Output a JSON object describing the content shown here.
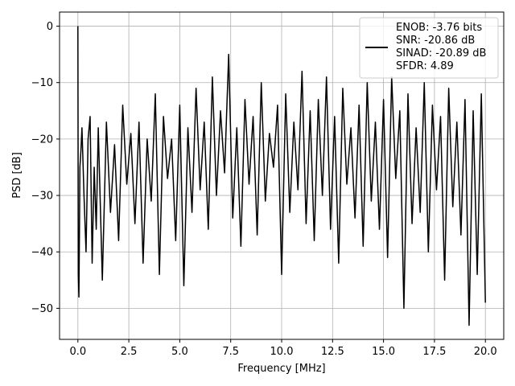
{
  "chart_data": {
    "type": "line",
    "xlabel": "Frequency [MHz]",
    "ylabel": "PSD [dB]",
    "xlim": [
      -0.9,
      20.9
    ],
    "ylim": [
      -55.5,
      2.5
    ],
    "xticks": [
      0.0,
      2.5,
      5.0,
      7.5,
      10.0,
      12.5,
      15.0,
      17.5,
      20.0
    ],
    "xtick_labels": [
      "0.0",
      "2.5",
      "5.0",
      "7.5",
      "10.0",
      "12.5",
      "15.0",
      "17.5",
      "20.0"
    ],
    "yticks": [
      0,
      -10,
      -20,
      -30,
      -40,
      -50
    ],
    "ytick_labels": [
      "0",
      "−10",
      "−20",
      "−30",
      "−40",
      "−50"
    ],
    "grid": true,
    "legend_position": "top-right",
    "series": [
      {
        "name": "ENOB: -3.76 bits\nSNR: -20.86 dB\nSINAD: -20.89 dB\nSFDR: 4.89",
        "legend_lines": [
          "ENOB: -3.76 bits",
          "SNR: -20.86 dB",
          "SINAD: -20.89 dB",
          "SFDR: 4.89"
        ],
        "color": "#000000",
        "x": [
          0.0,
          0.02,
          0.05,
          0.08,
          0.1,
          0.15,
          0.2,
          0.3,
          0.4,
          0.5,
          0.6,
          0.7,
          0.8,
          0.9,
          1.0,
          1.2,
          1.4,
          1.6,
          1.8,
          2.0,
          2.2,
          2.4,
          2.6,
          2.8,
          3.0,
          3.2,
          3.4,
          3.6,
          3.8,
          4.0,
          4.2,
          4.4,
          4.6,
          4.8,
          5.0,
          5.2,
          5.4,
          5.6,
          5.8,
          6.0,
          6.2,
          6.4,
          6.6,
          6.8,
          7.0,
          7.2,
          7.4,
          7.6,
          7.8,
          8.0,
          8.2,
          8.4,
          8.6,
          8.8,
          9.0,
          9.2,
          9.4,
          9.6,
          9.8,
          10.0,
          10.2,
          10.4,
          10.6,
          10.8,
          11.0,
          11.2,
          11.4,
          11.6,
          11.8,
          12.0,
          12.2,
          12.4,
          12.6,
          12.8,
          13.0,
          13.2,
          13.4,
          13.6,
          13.8,
          14.0,
          14.2,
          14.4,
          14.6,
          14.8,
          15.0,
          15.2,
          15.4,
          15.6,
          15.8,
          16.0,
          16.2,
          16.4,
          16.6,
          16.8,
          17.0,
          17.2,
          17.4,
          17.6,
          17.8,
          18.0,
          18.2,
          18.4,
          18.6,
          18.8,
          19.0,
          19.2,
          19.4,
          19.6,
          19.8,
          20.0
        ],
        "y": [
          0,
          -44,
          -48,
          -35,
          -25,
          -22,
          -18,
          -30,
          -40,
          -20,
          -16,
          -42,
          -25,
          -36,
          -18,
          -45,
          -17,
          -33,
          -21,
          -38,
          -14,
          -28,
          -19,
          -35,
          -17,
          -42,
          -20,
          -31,
          -12,
          -44,
          -16,
          -27,
          -20,
          -38,
          -14,
          -46,
          -18,
          -33,
          -11,
          -29,
          -17,
          -36,
          -9,
          -30,
          -15,
          -26,
          -5,
          -34,
          -18,
          -39,
          -13,
          -28,
          -16,
          -37,
          -10,
          -31,
          -19,
          -25,
          -14,
          -44,
          -12,
          -33,
          -17,
          -29,
          -8,
          -35,
          -15,
          -38,
          -13,
          -30,
          -9,
          -36,
          -16,
          -42,
          -11,
          -28,
          -18,
          -34,
          -14,
          -39,
          -10,
          -31,
          -17,
          -36,
          -13,
          -41,
          -9,
          -27,
          -15,
          -50,
          -12,
          -35,
          -18,
          -33,
          -10,
          -40,
          -14,
          -29,
          -16,
          -45,
          -11,
          -32,
          -17,
          -37,
          -13,
          -53,
          -15,
          -44,
          -12,
          -49
        ]
      }
    ]
  }
}
